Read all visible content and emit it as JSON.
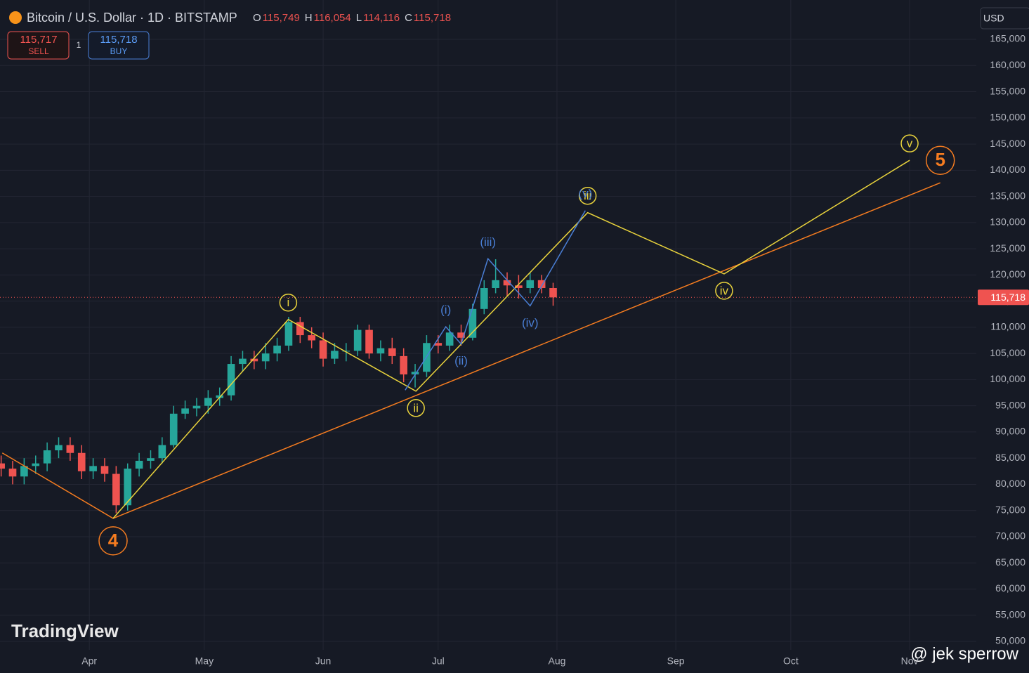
{
  "chart_data": {
    "type": "candlestick",
    "title": "Bitcoin / U.S. Dollar · 1D · BITSTAMP",
    "ohlc_header": [
      {
        "key": "O",
        "text": "115,749"
      },
      {
        "key": "H",
        "text": "116,054"
      },
      {
        "key": "L",
        "text": "114,116"
      },
      {
        "key": "C",
        "text": "115,718"
      }
    ],
    "sell": {
      "price": "115,717",
      "label": "SELL"
    },
    "quantity": "1",
    "buy": {
      "price": "115,718",
      "label": "BUY"
    },
    "currency": "USD",
    "brand": "TradingView",
    "watermark": "@ jek sperrow",
    "up_color": "#26a69a",
    "down_color": "#ef5350",
    "background": "#161a25",
    "grid": true,
    "xlim": [
      -0.3,
      254.4
    ],
    "ylim": [
      48390,
      172520
    ],
    "xticks": [
      {
        "value": 23,
        "label": "Apr"
      },
      {
        "value": 53,
        "label": "May"
      },
      {
        "value": 84,
        "label": "Jun"
      },
      {
        "value": 114,
        "label": "Jul"
      },
      {
        "value": 145,
        "label": "Aug"
      },
      {
        "value": 176,
        "label": "Sep"
      },
      {
        "value": 206,
        "label": "Oct"
      },
      {
        "value": 237,
        "label": "Nov"
      }
    ],
    "yticks": [
      {
        "value": 50000,
        "label": "50,000"
      },
      {
        "value": 55000,
        "label": "55,000"
      },
      {
        "value": 60000,
        "label": "60,000"
      },
      {
        "value": 65000,
        "label": "65,000"
      },
      {
        "value": 70000,
        "label": "70,000"
      },
      {
        "value": 75000,
        "label": "75,000"
      },
      {
        "value": 80000,
        "label": "80,000"
      },
      {
        "value": 85000,
        "label": "85,000"
      },
      {
        "value": 90000,
        "label": "90,000"
      },
      {
        "value": 95000,
        "label": "95,000"
      },
      {
        "value": 100000,
        "label": "100,000"
      },
      {
        "value": 105000,
        "label": "105,000"
      },
      {
        "value": 110000,
        "label": "110,000"
      },
      {
        "value": 115000,
        "label": "115,000"
      },
      {
        "value": 120000,
        "label": "120,000"
      },
      {
        "value": 125000,
        "label": "125,000"
      },
      {
        "value": 130000,
        "label": "130,000"
      },
      {
        "value": 135000,
        "label": "135,000"
      },
      {
        "value": 140000,
        "label": "140,000"
      },
      {
        "value": 145000,
        "label": "145,000"
      },
      {
        "value": 150000,
        "label": "150,000"
      },
      {
        "value": 155000,
        "label": "155,000"
      },
      {
        "value": 160000,
        "label": "160,000"
      },
      {
        "value": 165000,
        "label": "165,000"
      }
    ],
    "last_price": {
      "value": 115718,
      "label": "115,718"
    },
    "x": [
      0,
      3,
      6,
      9,
      12,
      15,
      18,
      21,
      24,
      27,
      30,
      33,
      36,
      39,
      42,
      45,
      48,
      51,
      54,
      57,
      60,
      63,
      66,
      69,
      72,
      75,
      78,
      81,
      84,
      87,
      90,
      93,
      96,
      99,
      102,
      105,
      108,
      111,
      114,
      117,
      120,
      123,
      126,
      129,
      132,
      135,
      138,
      141,
      144
    ],
    "open": [
      84000,
      83000,
      81500,
      83500,
      84000,
      86500,
      87500,
      86000,
      82500,
      83500,
      82000,
      76000,
      83000,
      84500,
      85000,
      87500,
      93500,
      94500,
      95000,
      96500,
      97000,
      103000,
      104000,
      103500,
      105000,
      106500,
      111000,
      108500,
      107500,
      104000,
      105500,
      105500,
      109500,
      105000,
      106000,
      104500,
      101000,
      101500,
      107000,
      106500,
      109000,
      108000,
      113500,
      117500,
      119000,
      118000,
      117500,
      119000,
      117500
    ],
    "high": [
      85500,
      84500,
      85000,
      85500,
      88000,
      89000,
      89000,
      87500,
      85000,
      85000,
      83500,
      84000,
      86000,
      86500,
      89000,
      95000,
      96000,
      96500,
      98000,
      98500,
      104500,
      105500,
      105500,
      107000,
      108000,
      112000,
      112000,
      110000,
      109000,
      107000,
      107000,
      110500,
      110500,
      107500,
      108000,
      106000,
      103000,
      108500,
      108500,
      110500,
      110500,
      114500,
      119000,
      123000,
      120500,
      120000,
      120500,
      120000,
      118500
    ],
    "low": [
      81500,
      80000,
      80000,
      82000,
      82500,
      85000,
      84500,
      81000,
      81000,
      80500,
      74500,
      75000,
      81500,
      83000,
      84000,
      87000,
      92500,
      93000,
      93500,
      95000,
      96000,
      101500,
      102000,
      102000,
      103500,
      105500,
      107000,
      106000,
      102500,
      103000,
      103500,
      104500,
      104000,
      103500,
      103000,
      99500,
      98500,
      100500,
      105000,
      105500,
      106500,
      107500,
      112500,
      116500,
      116000,
      115500,
      116500,
      116500,
      114116
    ],
    "close": [
      83000,
      81500,
      83500,
      84000,
      86500,
      87500,
      86000,
      82500,
      83500,
      82000,
      76000,
      83000,
      84500,
      85000,
      87500,
      93500,
      94500,
      95000,
      96500,
      97000,
      103000,
      104000,
      103500,
      105000,
      106500,
      111000,
      108500,
      107500,
      104000,
      105500,
      105500,
      109500,
      105000,
      106000,
      104500,
      101000,
      101500,
      107000,
      106500,
      109000,
      108000,
      113500,
      117500,
      119000,
      118000,
      117500,
      119000,
      117500,
      115718
    ],
    "waves": [
      {
        "color": "#f57c20",
        "label_style": "circle-large",
        "x": [
          0.3,
          29.2,
          245
        ],
        "y": [
          86000,
          73500,
          137600
        ],
        "labels": [
          null,
          "4",
          "5"
        ]
      },
      {
        "color": "#e9d33c",
        "label_style": "circle",
        "x": [
          29.2,
          74.9,
          108.2,
          153,
          188.6,
          237
        ],
        "y": [
          73500,
          111500,
          97800,
          131900,
          120200,
          141900
        ],
        "labels": [
          null,
          "i",
          "ii",
          "iii",
          "iv",
          "v"
        ]
      },
      {
        "color": "#4a7fd6",
        "label_style": "plain",
        "x": [
          105.4,
          116,
          120,
          127,
          138,
          152.4
        ],
        "y": [
          98000,
          110100,
          106800,
          123100,
          114100,
          132300
        ],
        "labels": [
          null,
          "(i)",
          "(ii)",
          "(iii)",
          "(iv)",
          "(v)"
        ]
      }
    ]
  }
}
